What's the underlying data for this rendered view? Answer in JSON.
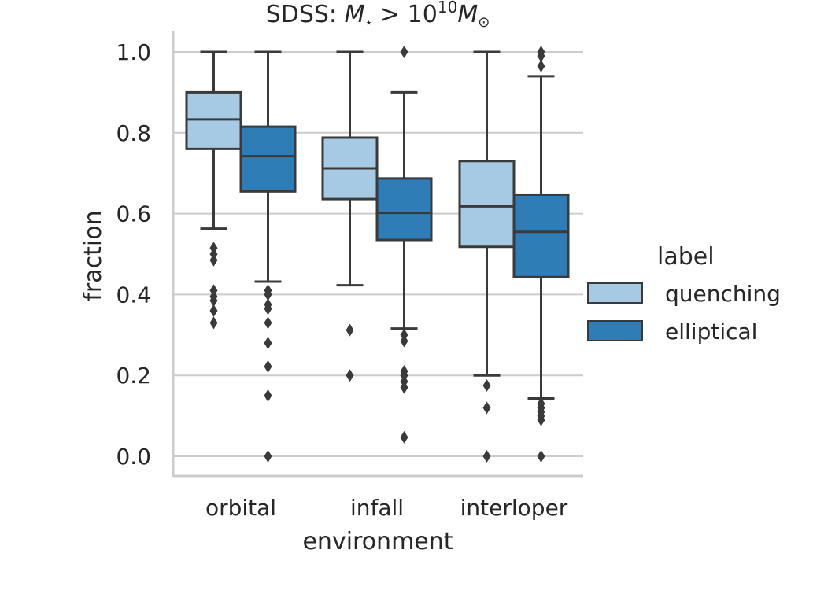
{
  "chart_data": {
    "type": "box",
    "title_parts": {
      "prefix": "SDSS: ",
      "m": "M",
      "star": "⋆",
      "gt": " > 10",
      "exp": "10",
      "m2": "M",
      "sun": "⊙"
    },
    "xlabel": "environment",
    "ylabel": "fraction",
    "ylim": [
      -0.05,
      1.05
    ],
    "yticks": [
      0.0,
      0.2,
      0.4,
      0.6,
      0.8,
      1.0
    ],
    "ytick_labels": [
      "0.0",
      "0.2",
      "0.4",
      "0.6",
      "0.8",
      "1.0"
    ],
    "grid": true,
    "categories": [
      "orbital",
      "infall",
      "interloper"
    ],
    "legend": {
      "title": "label",
      "position": "right"
    },
    "series": [
      {
        "name": "quenching",
        "color": "#a6cae3",
        "boxes": [
          {
            "whislo": 0.563,
            "q1": 0.76,
            "med": 0.833,
            "q3": 0.9,
            "whishi": 1.0,
            "fliers": [
              0.515,
              0.5,
              0.485,
              0.41,
              0.395,
              0.385,
              0.36,
              0.33
            ]
          },
          {
            "whislo": 0.423,
            "q1": 0.636,
            "med": 0.712,
            "q3": 0.788,
            "whishi": 1.0,
            "fliers": [
              0.312,
              0.2
            ]
          },
          {
            "whislo": 0.2,
            "q1": 0.518,
            "med": 0.618,
            "q3": 0.73,
            "whishi": 1.0,
            "fliers": [
              0.175,
              0.12,
              0.0
            ]
          }
        ]
      },
      {
        "name": "elliptical",
        "color": "#2f7db6",
        "boxes": [
          {
            "whislo": 0.432,
            "q1": 0.655,
            "med": 0.742,
            "q3": 0.815,
            "whishi": 1.0,
            "fliers": [
              0.41,
              0.4,
              0.375,
              0.365,
              0.33,
              0.28,
              0.222,
              0.15,
              0.0
            ]
          },
          {
            "whislo": 0.316,
            "q1": 0.535,
            "med": 0.602,
            "q3": 0.687,
            "whishi": 0.9,
            "fliers": [
              1.0,
              0.3,
              0.285,
              0.21,
              0.2,
              0.185,
              0.17,
              0.047
            ]
          },
          {
            "whislo": 0.143,
            "q1": 0.443,
            "med": 0.555,
            "q3": 0.647,
            "whishi": 0.94,
            "fliers": [
              1.0,
              0.99,
              0.965,
              0.13,
              0.12,
              0.11,
              0.1,
              0.09,
              0.0
            ]
          }
        ]
      }
    ]
  }
}
